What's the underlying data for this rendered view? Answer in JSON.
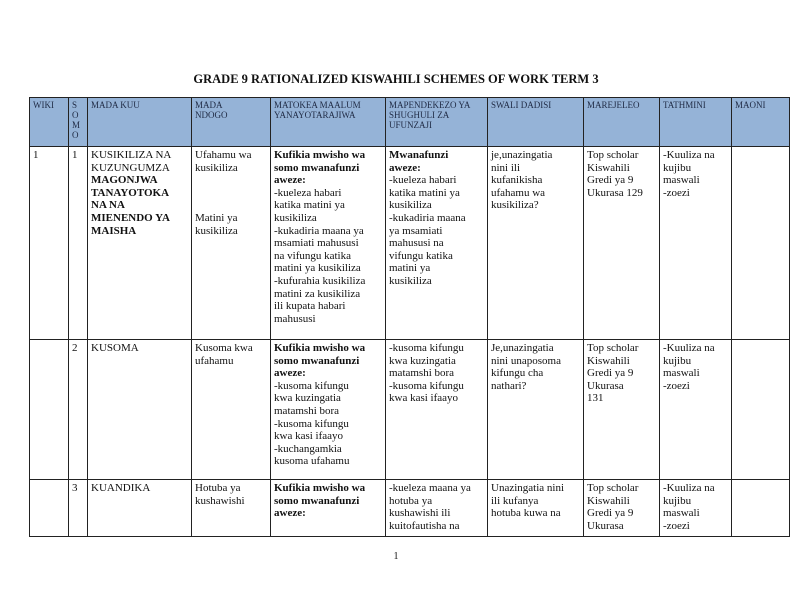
{
  "title": "GRADE 9 RATIONALIZED KISWAHILI SCHEMES OF WORK TERM 3",
  "header_color": "#95b3d7",
  "headers": [
    "WIKI",
    "S\nO\nM\nO",
    "MADA KUU",
    "MADA\nNDOGO",
    "MATOKEA MAALUM\nYANAYOTARAJIWA",
    "MAPENDEKEZO YA\nSHUGHULI ZA\nUFUNZAJI",
    "SWALI DADISI",
    "MAREJELEO",
    "TATHMINI",
    "MAONI"
  ],
  "rows": [
    {
      "wiki": "1",
      "somo": "1",
      "mada_kuu": "KUSIKILIZA NA\nKUZUNGUMZA\n",
      "mada_kuu_bold": "MAGONJWA\nTANAYOTOKA\nNA NA\nMIENENDO YA\nMAISHA",
      "mada_ndogo": "Ufahamu wa\nkusikiliza\n\n\n\nMatini ya\nkusikiliza",
      "matokea_bold": "Kufikia mwisho wa\nsomo mwanafunzi\naweze:",
      "matokea": "-kueleza habari\nkatika matini ya\nkusikiliza\n-kukadiria maana ya\nmsamiati mahususi\nna vifungu katika\nmatini ya kusikiliza\n-kufurahia kusikiliza\nmatini za kusikiliza\nili kupata habari\nmahususi",
      "mapendekezo_bold": "Mwanafunzi\naweze:",
      "mapendekezo": " -kueleza habari\nkatika matini ya\nkusikiliza\n-kukadiria maana\nya msamiati\nmahususi na\nvifungu katika\nmatini ya\nkusikiliza",
      "swali": "je,unazingatia\nnini ili\nkufanikisha\nufahamu wa\nkusikiliza?",
      "marejeleo": "Top scholar\nKiswahili\nGredi ya 9\nUkurasa 129",
      "tathmini": "-Kuuliza na\nkujibu\nmaswali\n-zoezi",
      "maoni": ""
    },
    {
      "wiki": "",
      "somo": "2",
      "mada_kuu": "KUSOMA",
      "mada_kuu_bold": "",
      "mada_ndogo": "Kusoma kwa\nufahamu",
      "matokea_bold": "Kufikia mwisho wa\nsomo mwanafunzi\naweze:",
      "matokea": "-kusoma kifungu\nkwa kuzingatia\nmatamshi bora\n-kusoma kifungu\nkwa kasi ifaayo\n-kuchangamkia\nkusoma ufahamu",
      "mapendekezo_bold": "",
      "mapendekezo": "-kusoma kifungu\nkwa kuzingatia\nmatamshi bora\n-kusoma kifungu\nkwa kasi ifaayo",
      "swali": "Je,unazingatia\nnini unaposoma\nkifungu cha\nnathari?",
      "marejeleo": "Top scholar\nKiswahili\nGredi ya 9\nUkurasa\n131",
      "tathmini": "-Kuuliza na\nkujibu\nmaswali\n-zoezi",
      "maoni": ""
    },
    {
      "wiki": "",
      "somo": "3",
      "mada_kuu": "KUANDIKA",
      "mada_kuu_bold": "",
      "mada_ndogo": "Hotuba ya\nkushawishi",
      "matokea_bold": "Kufikia mwisho wa\nsomo mwanafunzi\naweze:",
      "matokea": "",
      "mapendekezo_bold": "",
      "mapendekezo": " -kueleza maana ya\nhotuba ya\nkushawishi ili\nkuitofautisha na",
      "swali": " Unazingatia nini\nili kufanya\nhotuba kuwa na",
      "marejeleo": "Top scholar\nKiswahili\nGredi ya 9\nUkurasa",
      "tathmini": "-Kuuliza na\nkujibu\nmaswali\n-zoezi",
      "maoni": ""
    }
  ],
  "page_number": "1"
}
